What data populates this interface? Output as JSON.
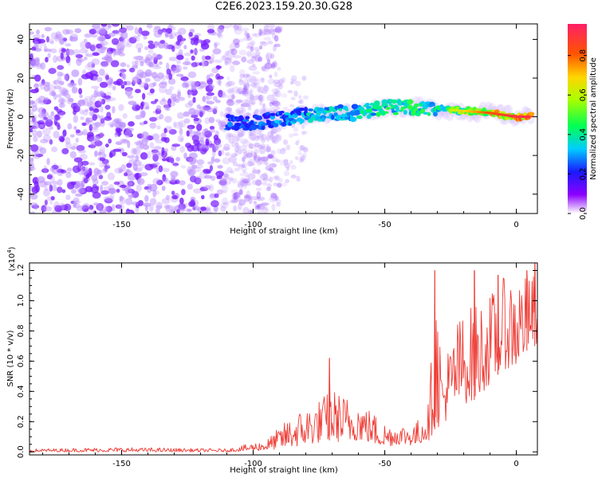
{
  "title": "C2E6.2023.159.20.30.G28",
  "chart_data": [
    {
      "type": "heatmap",
      "xlabel": "Height of straight line (km)",
      "ylabel": "Frequency (Hz)",
      "xlim": [
        -185,
        8
      ],
      "ylim": [
        -50,
        48
      ],
      "xticks": [
        -150,
        -100,
        -50,
        0
      ],
      "yticks": [
        40,
        20,
        0,
        -20,
        -40
      ],
      "colorbar": {
        "label": "Normalized spectral amplitude",
        "range": [
          0,
          0.96
        ],
        "ticks": [
          0.0,
          0.2,
          0.4,
          0.6,
          0.8
        ]
      },
      "ridge": {
        "x": [
          -110,
          -100,
          -90,
          -80,
          -70,
          -60,
          -50,
          -40,
          -30,
          -20,
          -10,
          0,
          6
        ],
        "frequency": [
          -3,
          -3,
          -1,
          1,
          2,
          2,
          5,
          5,
          4,
          3,
          2,
          0,
          0
        ],
        "amplitude": [
          0.3,
          0.3,
          0.35,
          0.4,
          0.45,
          0.45,
          0.5,
          0.5,
          0.5,
          0.65,
          0.8,
          0.9,
          0.9
        ]
      }
    },
    {
      "type": "line",
      "xlabel": "Height of straight line (km)",
      "ylabel": "SNR (10 * v/v)",
      "yscale_label": "(x10",
      "yscale_exp": "4",
      "yscale_close": ")",
      "xlim": [
        -185,
        8
      ],
      "ylim": [
        -0.02,
        1.25
      ],
      "xticks": [
        -150,
        -100,
        -50,
        0
      ],
      "yticks": [
        0.0,
        0.2,
        0.4,
        0.6,
        0.8,
        1.0,
        1.2
      ],
      "color": "#ee3b34",
      "envelope": {
        "x": [
          -185,
          -150,
          -110,
          -95,
          -85,
          -75,
          -70,
          -65,
          -60,
          -50,
          -45,
          -38,
          -33,
          -31,
          -28,
          -22,
          -15,
          -10,
          -5,
          0,
          5,
          8
        ],
        "low": [
          0.0,
          0.0,
          0.0,
          0.01,
          0.03,
          0.06,
          0.08,
          0.05,
          0.08,
          0.03,
          0.05,
          0.04,
          0.08,
          0.15,
          0.18,
          0.3,
          0.35,
          0.45,
          0.55,
          0.55,
          0.7,
          0.7
        ],
        "high": [
          0.02,
          0.03,
          0.02,
          0.08,
          0.25,
          0.35,
          0.42,
          0.38,
          0.35,
          0.2,
          0.18,
          0.2,
          0.35,
          1.2,
          0.6,
          0.9,
          1.0,
          1.05,
          1.15,
          1.2,
          1.15,
          1.22
        ]
      },
      "peaks": [
        {
          "x": -71,
          "y": 0.62
        },
        {
          "x": -31,
          "y": 1.2
        },
        {
          "x": -16,
          "y": 1.2
        },
        {
          "x": -7,
          "y": 1.17
        },
        {
          "x": 4,
          "y": 1.2
        },
        {
          "x": 7,
          "y": 1.25
        }
      ]
    }
  ]
}
